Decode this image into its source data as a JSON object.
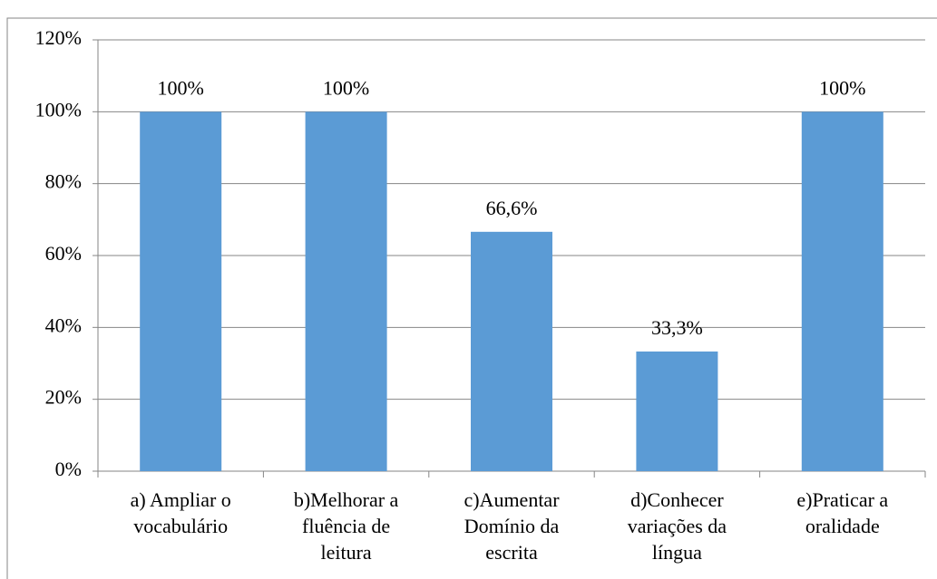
{
  "chart_data": {
    "type": "bar",
    "categories": [
      [
        "a) Ampliar o",
        "vocabulário"
      ],
      [
        "b)Melhorar a",
        "fluência de",
        "leitura"
      ],
      [
        "c)Aumentar",
        "Domínio da",
        "escrita"
      ],
      [
        "d)Conhecer",
        "variações da",
        "língua"
      ],
      [
        "e)Praticar a",
        "oralidade"
      ]
    ],
    "values": [
      100,
      100,
      66.6,
      33.3,
      100
    ],
    "value_labels": [
      "100%",
      "100%",
      "66,6%",
      "33,3%",
      "100%"
    ],
    "color": "#5b9bd5",
    "ylim": [
      0,
      120
    ],
    "yticks": [
      {
        "value": 0,
        "label": "0%"
      },
      {
        "value": 20,
        "label": "20%"
      },
      {
        "value": 40,
        "label": "40%"
      },
      {
        "value": 60,
        "label": "60%"
      },
      {
        "value": 80,
        "label": "80%"
      },
      {
        "value": 100,
        "label": "100%"
      },
      {
        "value": 120,
        "label": "120%"
      }
    ],
    "grid": true
  }
}
